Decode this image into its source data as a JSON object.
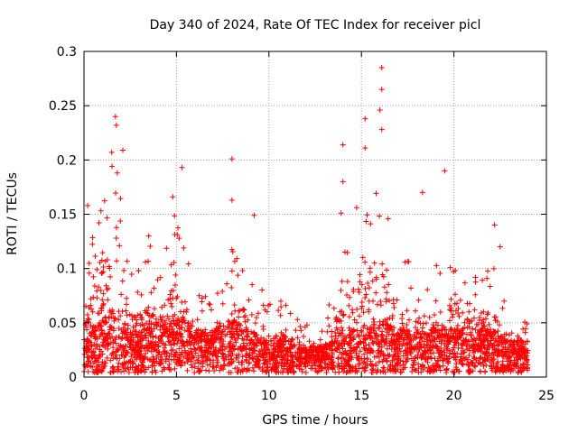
{
  "chart_data": {
    "type": "scatter",
    "title": "Day 340 of 2024, Rate Of TEC Index for receiver picl",
    "xlabel": "GPS time / hours",
    "ylabel": "ROTI / TECUs",
    "xlim": [
      0,
      25
    ],
    "ylim": [
      0,
      0.3
    ],
    "x_ticks": [
      0,
      5,
      10,
      15,
      20,
      25
    ],
    "x_tick_labels": [
      "0",
      "5",
      "10",
      "15",
      "20",
      "25"
    ],
    "y_ticks": [
      0,
      0.05,
      0.1,
      0.15,
      0.2,
      0.25,
      0.3
    ],
    "y_tick_labels": [
      "0",
      "0.05",
      "0.1",
      "0.15",
      "0.2",
      "0.25",
      "0.3"
    ],
    "grid": true,
    "marker": "+",
    "series_color": "#ff0000",
    "grid_color": "#a0a0a0",
    "notable_points": [
      {
        "x": 0.2,
        "y": 0.158
      },
      {
        "x": 1.7,
        "y": 0.24
      },
      {
        "x": 1.75,
        "y": 0.232
      },
      {
        "x": 1.5,
        "y": 0.207
      },
      {
        "x": 2.1,
        "y": 0.209
      },
      {
        "x": 1.8,
        "y": 0.188
      },
      {
        "x": 3.5,
        "y": 0.13
      },
      {
        "x": 4.8,
        "y": 0.166
      },
      {
        "x": 5.3,
        "y": 0.193
      },
      {
        "x": 8.0,
        "y": 0.201
      },
      {
        "x": 8.0,
        "y": 0.163
      },
      {
        "x": 9.2,
        "y": 0.149
      },
      {
        "x": 14.0,
        "y": 0.214
      },
      {
        "x": 14.0,
        "y": 0.18
      },
      {
        "x": 13.9,
        "y": 0.151
      },
      {
        "x": 15.2,
        "y": 0.238
      },
      {
        "x": 15.2,
        "y": 0.211
      },
      {
        "x": 16.1,
        "y": 0.285
      },
      {
        "x": 16.1,
        "y": 0.265
      },
      {
        "x": 16.0,
        "y": 0.246
      },
      {
        "x": 16.1,
        "y": 0.228
      },
      {
        "x": 18.3,
        "y": 0.17
      },
      {
        "x": 19.5,
        "y": 0.19
      },
      {
        "x": 22.2,
        "y": 0.14
      },
      {
        "x": 22.5,
        "y": 0.12
      }
    ],
    "activity_profile": [
      {
        "x": 0.0,
        "base": 0.03,
        "peak": 0.08
      },
      {
        "x": 0.5,
        "base": 0.04,
        "peak": 0.15
      },
      {
        "x": 1.0,
        "base": 0.05,
        "peak": 0.18
      },
      {
        "x": 1.5,
        "base": 0.06,
        "peak": 0.21
      },
      {
        "x": 2.0,
        "base": 0.05,
        "peak": 0.17
      },
      {
        "x": 2.5,
        "base": 0.04,
        "peak": 0.1
      },
      {
        "x": 3.0,
        "base": 0.04,
        "peak": 0.1
      },
      {
        "x": 3.5,
        "base": 0.05,
        "peak": 0.13
      },
      {
        "x": 4.0,
        "base": 0.04,
        "peak": 0.1
      },
      {
        "x": 4.5,
        "base": 0.05,
        "peak": 0.14
      },
      {
        "x": 5.0,
        "base": 0.05,
        "peak": 0.18
      },
      {
        "x": 5.5,
        "base": 0.05,
        "peak": 0.12
      },
      {
        "x": 6.0,
        "base": 0.04,
        "peak": 0.08
      },
      {
        "x": 7.0,
        "base": 0.04,
        "peak": 0.07
      },
      {
        "x": 8.0,
        "base": 0.05,
        "peak": 0.12
      },
      {
        "x": 9.0,
        "base": 0.04,
        "peak": 0.11
      },
      {
        "x": 10.0,
        "base": 0.03,
        "peak": 0.07
      },
      {
        "x": 11.0,
        "base": 0.03,
        "peak": 0.07
      },
      {
        "x": 12.0,
        "base": 0.025,
        "peak": 0.05
      },
      {
        "x": 13.0,
        "base": 0.025,
        "peak": 0.05
      },
      {
        "x": 14.0,
        "base": 0.04,
        "peak": 0.13
      },
      {
        "x": 15.0,
        "base": 0.04,
        "peak": 0.17
      },
      {
        "x": 16.0,
        "base": 0.05,
        "peak": 0.2
      },
      {
        "x": 17.0,
        "base": 0.04,
        "peak": 0.1
      },
      {
        "x": 18.0,
        "base": 0.04,
        "peak": 0.12
      },
      {
        "x": 19.0,
        "base": 0.04,
        "peak": 0.1
      },
      {
        "x": 19.5,
        "base": 0.04,
        "peak": 0.13
      },
      {
        "x": 20.0,
        "base": 0.04,
        "peak": 0.11
      },
      {
        "x": 21.0,
        "base": 0.04,
        "peak": 0.1
      },
      {
        "x": 22.0,
        "base": 0.04,
        "peak": 0.11
      },
      {
        "x": 23.0,
        "base": 0.03,
        "peak": 0.06
      },
      {
        "x": 24.0,
        "base": 0.03,
        "peak": 0.05
      }
    ]
  }
}
